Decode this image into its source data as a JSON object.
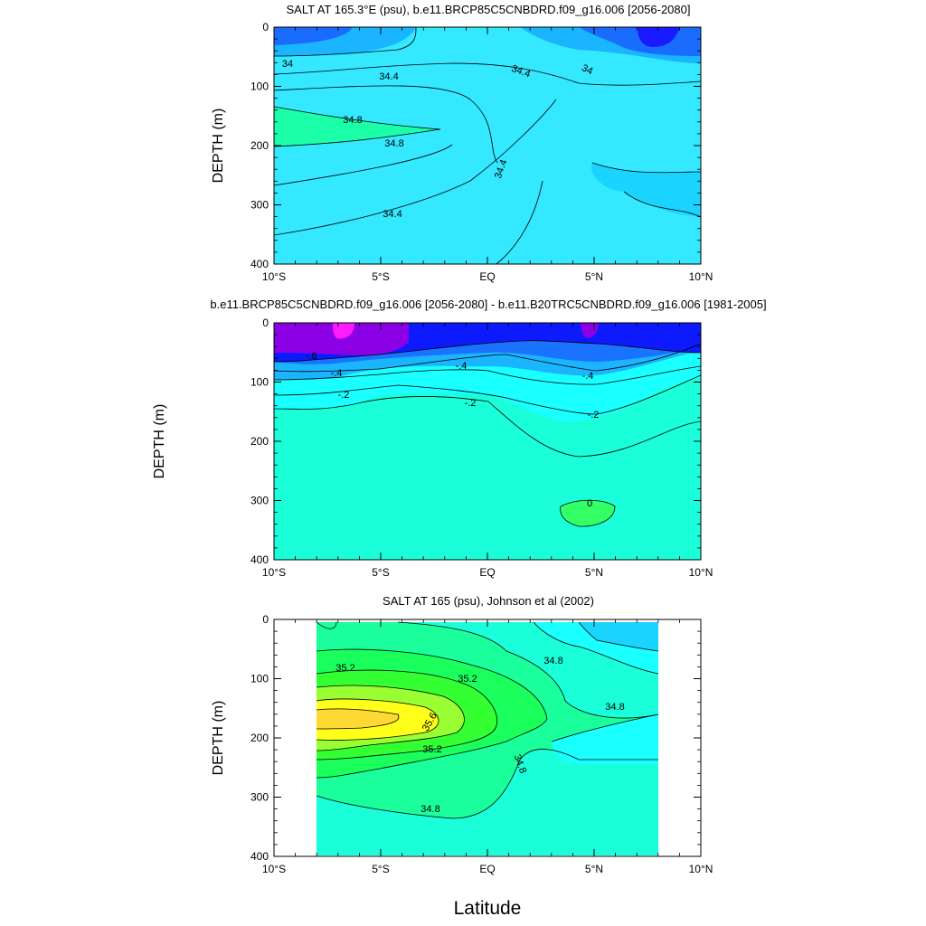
{
  "figure": {
    "bottom_xlabel": "Latitude"
  },
  "chart_data": [
    {
      "type": "contour",
      "title": "SALT AT 165.3°E (psu), b.e11.BRCP85C5CNBDRD.f09_g16.006 [2056-2080]",
      "ylabel": "DEPTH (m)",
      "xlim": [
        -10,
        10
      ],
      "ylim": [
        400,
        0
      ],
      "x_ticks": [
        "10°S",
        "5°S",
        "EQ",
        "5°N",
        "10°N"
      ],
      "y_ticks": [
        "0",
        "100",
        "200",
        "300",
        "400"
      ],
      "contour_labels": [
        "34",
        "34.4",
        "34.4",
        "34",
        "34.8",
        "34.8",
        "34.4",
        "34.4"
      ],
      "colors": {
        "background": "#33e8ff",
        "low_deep": "#1a1aff",
        "low": "#1a6cff",
        "mid_low": "#1ab4ff",
        "high": "#1affa8"
      }
    },
    {
      "type": "contour",
      "title": "b.e11.BRCP85C5CNBDRD.f09_g16.006 [2056-2080] - b.e11.B20TRC5CNBDRD.f09_g16.006 [1981-2005]",
      "ylabel": "DEPTH (m)",
      "xlim": [
        -10,
        10
      ],
      "ylim": [
        400,
        0
      ],
      "x_ticks": [
        "10°S",
        "5°S",
        "EQ",
        "5°N",
        "10°N"
      ],
      "y_ticks": [
        "0",
        "100",
        "200",
        "300",
        "400"
      ],
      "contour_labels": [
        "-.6",
        "-.4",
        "-.4",
        "-.4",
        "-.2",
        "-.2",
        "-.2",
        "0"
      ],
      "colors": {
        "background": "#1affd9",
        "magenta": "#ff1aff",
        "purple": "#8c00e6",
        "blue": "#0d1aff",
        "mid_blue": "#1a73ff",
        "light_blue": "#1ab4ff",
        "cyan": "#1affff",
        "green": "#33ff66"
      }
    },
    {
      "type": "contour",
      "title": "SALT AT 165 (psu), Johnson et al (2002)",
      "ylabel": "DEPTH (m)",
      "xlim": [
        -10,
        10
      ],
      "ylim": [
        400,
        0
      ],
      "x_ticks": [
        "10°S",
        "5°S",
        "EQ",
        "5°N",
        "10°N"
      ],
      "y_ticks": [
        "0",
        "100",
        "200",
        "300",
        "400"
      ],
      "contour_labels": [
        "35.2",
        "35.2",
        "34.8",
        "34.8",
        "35.6",
        "35.2",
        "34.8",
        "34.8"
      ],
      "colors": {
        "background": "#1affd9",
        "cyan": "#1affff",
        "sky": "#1ad4ff",
        "green_light": "#1aff9b",
        "green": "#33ff33",
        "green_mid": "#1aff5c",
        "lime": "#99ff33",
        "yellow": "#ffff1a",
        "gold": "#ffd933"
      }
    }
  ]
}
